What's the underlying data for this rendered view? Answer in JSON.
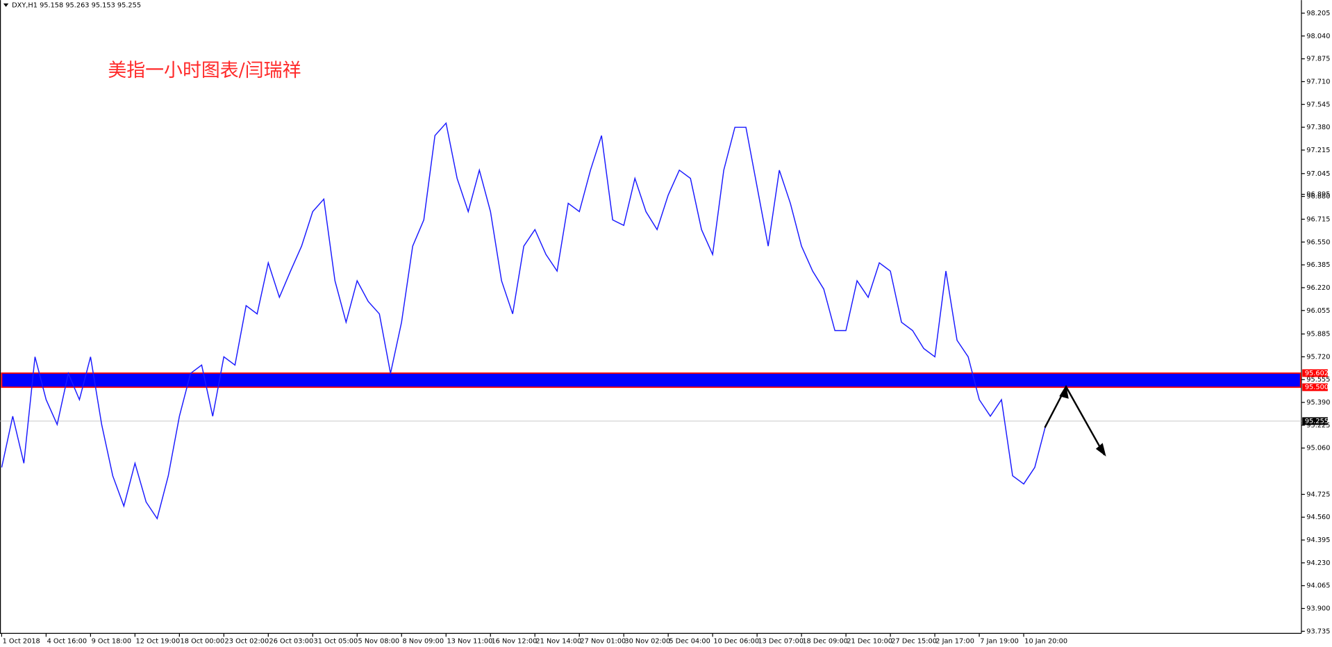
{
  "chart_data": {
    "type": "line",
    "header": "DXY,H1  95.158 95.263 95.153 95.255",
    "title": "美指一小时图表/闫瑞祥",
    "x": [
      0,
      1,
      2,
      3,
      4,
      5,
      6,
      7,
      8,
      9,
      10,
      11,
      12,
      13,
      14,
      15,
      16,
      17,
      18,
      19,
      20,
      21,
      22,
      23,
      24,
      25,
      26,
      27,
      28,
      29,
      30,
      31,
      32,
      33,
      34,
      35,
      36,
      37,
      38,
      39,
      40,
      41,
      42,
      43,
      44,
      45,
      46,
      47,
      48,
      49,
      50,
      51,
      52,
      53,
      54,
      55,
      56,
      57,
      58,
      59,
      60,
      61,
      62,
      63,
      64,
      65,
      66,
      67,
      68,
      69,
      70,
      71,
      72,
      73,
      74,
      75,
      76,
      77,
      78,
      79,
      80,
      81,
      82,
      83,
      84,
      85,
      86,
      87,
      88,
      89,
      90,
      91,
      92,
      93,
      94
    ],
    "series": [
      {
        "name": "DXY",
        "color": "#1a1aff",
        "values": [
          94.92,
          95.29,
          94.95,
          95.72,
          95.41,
          95.23,
          95.6,
          95.41,
          95.72,
          95.23,
          94.86,
          94.64,
          94.95,
          94.67,
          94.55,
          94.86,
          95.29,
          95.6,
          95.66,
          95.29,
          95.72,
          95.66,
          96.09,
          96.03,
          96.4,
          96.15,
          96.34,
          96.52,
          96.77,
          96.86,
          96.27,
          95.97,
          96.27,
          96.12,
          96.03,
          95.6,
          95.97,
          96.52,
          96.71,
          97.32,
          97.41,
          97.01,
          96.77,
          97.07,
          96.77,
          96.27,
          96.03,
          96.52,
          96.64,
          96.46,
          96.34,
          96.83,
          96.77,
          97.07,
          97.32,
          96.71,
          96.67,
          97.01,
          96.77,
          96.64,
          96.89,
          97.07,
          97.01,
          96.64,
          96.46,
          97.07,
          97.38,
          97.38,
          96.95,
          96.52,
          97.07,
          96.83,
          96.52,
          96.34,
          96.21,
          95.91,
          95.91,
          96.27,
          96.15,
          96.4,
          96.34,
          95.97,
          95.91,
          95.78,
          95.72,
          96.34,
          95.84,
          95.72,
          95.41,
          95.29,
          95.41,
          94.86,
          94.8,
          94.92,
          95.23
        ]
      }
    ],
    "xlim": [
      -0.15,
      117
    ],
    "xticks": [
      {
        "value": 0,
        "label": "1 Oct 2018"
      },
      {
        "value": 4,
        "label": "4 Oct 16:00"
      },
      {
        "value": 8,
        "label": "9 Oct 18:00"
      },
      {
        "value": 12,
        "label": "12 Oct 19:00"
      },
      {
        "value": 16,
        "label": "18 Oct 00:00"
      },
      {
        "value": 20,
        "label": "23 Oct 02:00"
      },
      {
        "value": 24,
        "label": "26 Oct 03:00"
      },
      {
        "value": 28,
        "label": "31 Oct 05:00"
      },
      {
        "value": 32,
        "label": "5 Nov 08:00"
      },
      {
        "value": 36,
        "label": "8 Nov 09:00"
      },
      {
        "value": 40,
        "label": "13 Nov 11:00"
      },
      {
        "value": 44,
        "label": "16 Nov 12:00"
      },
      {
        "value": 48,
        "label": "21 Nov 14:00"
      },
      {
        "value": 52,
        "label": "27 Nov 01:00"
      },
      {
        "value": 56,
        "label": "30 Nov 02:00"
      },
      {
        "value": 60,
        "label": "5 Dec 04:00"
      },
      {
        "value": 64,
        "label": "10 Dec 06:00"
      },
      {
        "value": 68,
        "label": "13 Dec 07:00"
      },
      {
        "value": 72,
        "label": "18 Dec 09:00"
      },
      {
        "value": 76,
        "label": "21 Dec 10:00"
      },
      {
        "value": 80,
        "label": "27 Dec 15:00"
      },
      {
        "value": 84,
        "label": "2 Jan 17:00"
      },
      {
        "value": 88,
        "label": "7 Jan 19:00"
      },
      {
        "value": 92,
        "label": "10 Jan 20:00"
      }
    ],
    "ylim": [
      93.72,
      98.3
    ],
    "yticks": [
      98.205,
      {
        "value": 98.04,
        "label": "98.040"
      },
      97.875,
      {
        "value": 97.71,
        "label": "97.710"
      },
      97.545,
      {
        "value": 97.38,
        "label": "97.380"
      },
      97.215,
      97.045,
      {
        "value": 96.88,
        "label": "96.880"
      },
      96.715,
      {
        "value": 96.55,
        "label": "96.550"
      },
      96.385,
      {
        "value": 96.22,
        "label": "96.220"
      },
      96.055,
      95.885,
      {
        "value": 95.72,
        "label": "95.720"
      },
      95.555,
      {
        "value": 95.39,
        "label": "95.390"
      },
      95.225,
      {
        "value": 95.06,
        "label": "95.060"
      },
      96.895,
      94.725,
      {
        "value": 94.56,
        "label": "94.560"
      },
      94.395,
      {
        "value": 94.23,
        "label": "94.230"
      },
      94.065,
      {
        "value": 93.9,
        "label": "93.900"
      },
      93.735
    ],
    "zone": {
      "top": 95.602,
      "bottom": {
        "value": 95.5,
        "label": "95.500"
      }
    },
    "current_price": 95.255
  }
}
